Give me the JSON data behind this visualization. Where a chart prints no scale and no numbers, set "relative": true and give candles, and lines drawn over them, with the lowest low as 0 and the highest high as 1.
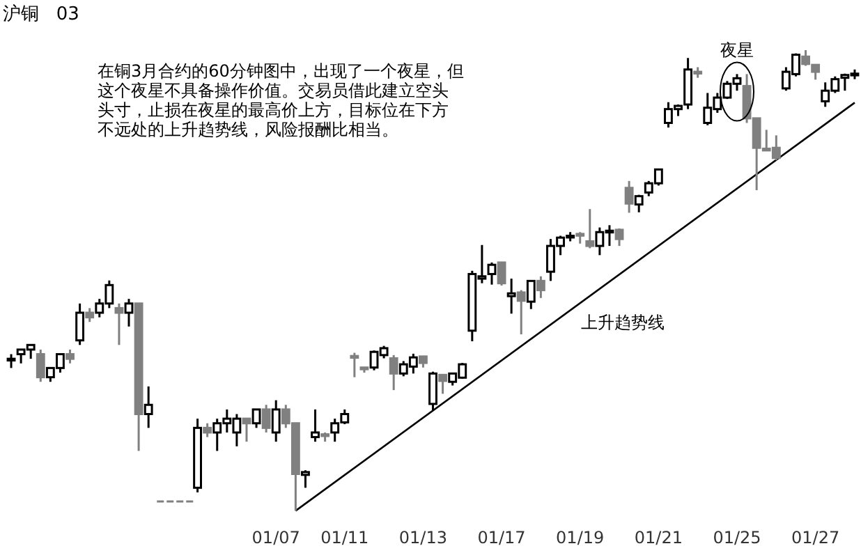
{
  "chart_data": {
    "type": "candlestick",
    "title": "沪铜   03",
    "relative": true,
    "annotations": [
      "在铜3月合约的60分钟图中，出现了一个夜星，但",
      "这个夜星不具备操作价值。交易员借此建立空头",
      "头寸，止损在夜星的最高价上方，目标位在下方",
      "不远处的上升趋势线，风险报酬比相当。",
      "夜星"
    ],
    "categories": [
      null,
      null,
      null,
      null,
      null,
      null,
      null,
      null,
      null,
      null,
      null,
      null,
      null,
      null,
      null,
      null,
      null,
      null,
      null,
      null,
      null,
      null,
      null,
      null,
      null,
      null,
      null,
      "01/07",
      null,
      null,
      null,
      null,
      null,
      null,
      "01/11",
      null,
      null,
      null,
      null,
      null,
      null,
      null,
      "01/13",
      null,
      null,
      null,
      null,
      null,
      null,
      null,
      "01/17",
      null,
      null,
      null,
      null,
      null,
      null,
      null,
      "01/19",
      null,
      null,
      null,
      null,
      null,
      null,
      null,
      "01/21",
      null,
      null,
      null,
      null,
      null,
      null,
      null,
      "01/25",
      null,
      null,
      null,
      null,
      null,
      null,
      null,
      "01/27",
      null,
      null,
      null,
      null
    ],
    "ohlc": [
      [
        0.33,
        0.34,
        0.31,
        0.33
      ],
      [
        0.34,
        0.35,
        0.32,
        0.35
      ],
      [
        0.35,
        0.36,
        0.33,
        0.36
      ],
      [
        0.34,
        0.35,
        0.28,
        0.29
      ],
      [
        0.29,
        0.31,
        0.28,
        0.31
      ],
      [
        0.31,
        0.34,
        0.3,
        0.34
      ],
      [
        0.34,
        0.35,
        0.32,
        0.33
      ],
      [
        0.37,
        0.45,
        0.36,
        0.43
      ],
      [
        0.43,
        0.44,
        0.41,
        0.42
      ],
      [
        0.43,
        0.46,
        0.42,
        0.45
      ],
      [
        0.45,
        0.5,
        0.44,
        0.49
      ],
      [
        0.44,
        0.45,
        0.36,
        0.43
      ],
      [
        0.43,
        0.46,
        0.4,
        0.45
      ],
      [
        0.45,
        0.45,
        0.13,
        0.21
      ],
      [
        0.21,
        0.27,
        0.18,
        0.23
      ],
      null,
      null,
      null,
      null,
      [
        0.05,
        0.2,
        0.04,
        0.18
      ],
      [
        0.18,
        0.19,
        0.16,
        0.17
      ],
      [
        0.17,
        0.2,
        0.13,
        0.19
      ],
      [
        0.19,
        0.22,
        0.17,
        0.2
      ],
      [
        0.17,
        0.21,
        0.14,
        0.2
      ],
      [
        0.2,
        0.2,
        0.15,
        0.19
      ],
      [
        0.19,
        0.22,
        0.18,
        0.22
      ],
      [
        0.22,
        0.23,
        0.17,
        0.18
      ],
      [
        0.17,
        0.24,
        0.15,
        0.22
      ],
      [
        0.22,
        0.23,
        0.18,
        0.19
      ],
      [
        0.19,
        0.19,
        0.0,
        0.08
      ],
      [
        0.078,
        0.088,
        0.05,
        0.084
      ],
      [
        0.16,
        0.22,
        0.15,
        0.17
      ],
      [
        0.166,
        0.17,
        0.15,
        0.163
      ],
      [
        0.17,
        0.2,
        0.15,
        0.19
      ],
      [
        0.192,
        0.22,
        0.188,
        0.21
      ],
      [
        0.336,
        0.343,
        0.29,
        0.333
      ],
      [
        0.311,
        0.311,
        0.3,
        0.308
      ],
      [
        0.311,
        0.348,
        0.305,
        0.345
      ],
      [
        0.338,
        0.358,
        0.331,
        0.353
      ],
      [
        0.331,
        0.338,
        0.262,
        0.298
      ],
      [
        0.298,
        0.325,
        0.292,
        0.318
      ],
      [
        0.313,
        0.341,
        0.298,
        0.333
      ],
      [
        0.335,
        0.335,
        0.311,
        0.321
      ],
      [
        0.232,
        0.302,
        0.217,
        0.298
      ],
      [
        0.295,
        0.295,
        0.254,
        0.282
      ],
      [
        0.28,
        0.3,
        0.272,
        0.298
      ],
      [
        0.289,
        0.321,
        0.287,
        0.318
      ],
      [
        0.391,
        0.521,
        0.368,
        0.514
      ],
      [
        0.504,
        0.577,
        0.494,
        0.509
      ],
      [
        0.514,
        0.539,
        0.491,
        0.534
      ],
      [
        0.539,
        0.539,
        0.489,
        0.494
      ],
      [
        0.466,
        0.504,
        0.428,
        0.472
      ],
      [
        0.474,
        0.479,
        0.383,
        0.456
      ],
      [
        0.454,
        0.501,
        0.438,
        0.499
      ],
      [
        0.499,
        0.509,
        0.462,
        0.479
      ],
      [
        0.519,
        0.59,
        0.499,
        0.575
      ],
      [
        0.575,
        0.597,
        0.555,
        0.593
      ],
      [
        0.595,
        0.605,
        0.585,
        0.597
      ],
      [
        0.601,
        0.605,
        0.58,
        0.598
      ],
      [
        0.585,
        0.655,
        0.57,
        0.575
      ],
      [
        0.575,
        0.615,
        0.555,
        0.605
      ],
      [
        0.605,
        0.62,
        0.575,
        0.608
      ],
      [
        0.61,
        0.613,
        0.575,
        0.59
      ],
      [
        0.701,
        0.716,
        0.647,
        0.667
      ],
      [
        0.665,
        0.686,
        0.648,
        0.683
      ],
      [
        0.691,
        0.716,
        0.683,
        0.711
      ],
      [
        0.711,
        0.743,
        0.706,
        0.741
      ],
      [
        0.842,
        0.887,
        0.832,
        0.872
      ],
      [
        0.872,
        0.882,
        0.857,
        0.879
      ],
      [
        0.882,
        0.983,
        0.872,
        0.958
      ],
      [
        0.953,
        0.963,
        0.94,
        0.951
      ],
      [
        0.842,
        0.907,
        0.837,
        0.875
      ],
      [
        0.872,
        0.907,
        0.864,
        0.897
      ],
      [
        0.897,
        0.933,
        0.894,
        0.927
      ],
      [
        0.927,
        0.948,
        0.912,
        0.939
      ],
      [
        0.922,
        0.948,
        0.842,
        0.852
      ],
      [
        0.852,
        0.852,
        0.696,
        0.788
      ],
      [
        0.786,
        0.827,
        0.781,
        0.783
      ],
      [
        0.788,
        0.815,
        0.761,
        0.766
      ],
      [
        0.917,
        0.963,
        0.912,
        0.953
      ],
      [
        0.948,
        0.993,
        0.943,
        0.99
      ],
      [
        0.986,
        1.0,
        0.966,
        0.97
      ],
      [
        0.968,
        0.968,
        0.936,
        0.953
      ],
      [
        0.889,
        0.93,
        0.877,
        0.912
      ],
      [
        0.912,
        0.943,
        0.907,
        0.937
      ],
      [
        0.94,
        0.949,
        0.912,
        0.946
      ],
      [
        0.946,
        0.958,
        0.937,
        0.949
      ]
    ],
    "series": [
      {
        "type": "line",
        "name": "上升趋势线",
        "color": "#000000",
        "values": [
          null,
          null,
          null,
          null,
          null,
          null,
          null,
          null,
          null,
          null,
          null,
          null,
          null,
          null,
          null,
          null,
          null,
          null,
          null,
          null,
          null,
          null,
          null,
          null,
          null,
          null,
          null,
          null,
          null,
          0.0,
          null,
          null,
          null,
          null,
          null,
          null,
          null,
          null,
          null,
          null,
          null,
          null,
          null,
          null,
          null,
          null,
          null,
          null,
          null,
          null,
          null,
          null,
          null,
          null,
          null,
          null,
          null,
          null,
          null,
          null,
          null,
          null,
          null,
          null,
          null,
          null,
          null,
          null,
          null,
          null,
          null,
          null,
          null,
          null,
          null,
          null,
          null,
          null,
          null,
          null,
          null,
          null,
          null,
          null,
          null,
          null,
          0.886
        ]
      }
    ]
  }
}
